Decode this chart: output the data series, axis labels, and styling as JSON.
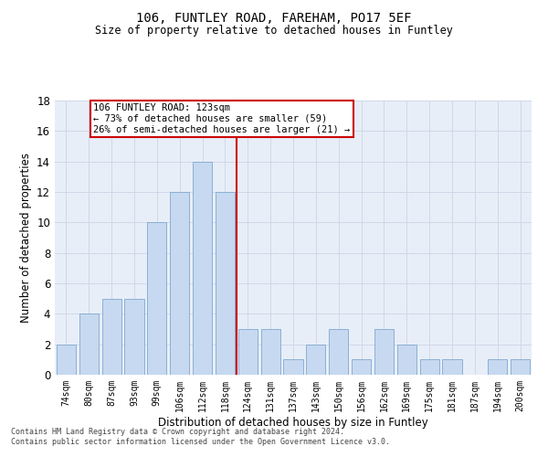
{
  "title1": "106, FUNTLEY ROAD, FAREHAM, PO17 5EF",
  "title2": "Size of property relative to detached houses in Funtley",
  "xlabel": "Distribution of detached houses by size in Funtley",
  "ylabel": "Number of detached properties",
  "bar_labels": [
    "74sqm",
    "80sqm",
    "87sqm",
    "93sqm",
    "99sqm",
    "106sqm",
    "112sqm",
    "118sqm",
    "124sqm",
    "131sqm",
    "137sqm",
    "143sqm",
    "150sqm",
    "156sqm",
    "162sqm",
    "169sqm",
    "175sqm",
    "181sqm",
    "187sqm",
    "194sqm",
    "200sqm"
  ],
  "bar_values": [
    2,
    4,
    5,
    5,
    10,
    12,
    14,
    12,
    3,
    3,
    1,
    2,
    3,
    1,
    3,
    2,
    1,
    1,
    0,
    1,
    1
  ],
  "bar_color": "#c6d9f0",
  "bar_edge_color": "#7fa8d0",
  "grid_color": "#d0d8e8",
  "vline_x": 7.5,
  "vline_color": "#cc0000",
  "annotation_text": "106 FUNTLEY ROAD: 123sqm\n← 73% of detached houses are smaller (59)\n26% of semi-detached houses are larger (21) →",
  "annotation_box_color": "#cc0000",
  "ylim": [
    0,
    18
  ],
  "yticks": [
    0,
    2,
    4,
    6,
    8,
    10,
    12,
    14,
    16,
    18
  ],
  "footer": "Contains HM Land Registry data © Crown copyright and database right 2024.\nContains public sector information licensed under the Open Government Licence v3.0.",
  "background_color": "#e8eef8",
  "fig_background_color": "#ffffff"
}
